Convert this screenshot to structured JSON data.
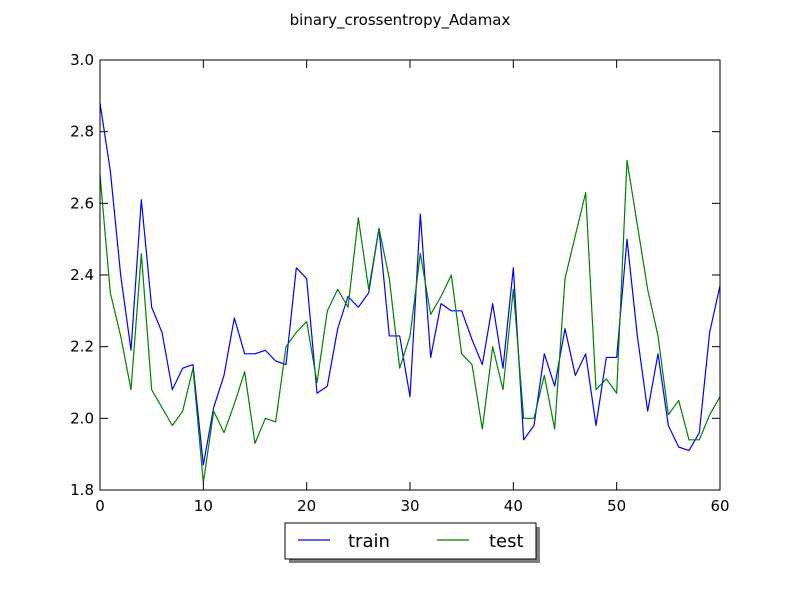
{
  "chart_data": {
    "type": "line",
    "title": "binary_crossentropy_Adamax",
    "xlabel": "",
    "ylabel": "",
    "xlim": [
      0,
      60
    ],
    "ylim": [
      1.8,
      3.0
    ],
    "xticks": [
      0,
      10,
      20,
      30,
      40,
      50,
      60
    ],
    "yticks": [
      1.8,
      2.0,
      2.2,
      2.4,
      2.6,
      2.8,
      3.0
    ],
    "xtick_labels": [
      "0",
      "10",
      "20",
      "30",
      "40",
      "50",
      "60"
    ],
    "ytick_labels": [
      "1.8",
      "2.0",
      "2.2",
      "2.4",
      "2.6",
      "2.8",
      "3.0"
    ],
    "grid": false,
    "legend_position": "bottom-center-outside",
    "x": [
      0,
      1,
      2,
      3,
      4,
      5,
      6,
      7,
      8,
      9,
      10,
      11,
      12,
      13,
      14,
      15,
      16,
      17,
      18,
      19,
      20,
      21,
      22,
      23,
      24,
      25,
      26,
      27,
      28,
      29,
      30,
      31,
      32,
      33,
      34,
      35,
      36,
      37,
      38,
      39,
      40,
      41,
      42,
      43,
      44,
      45,
      46,
      47,
      48,
      49,
      50,
      51,
      52,
      53,
      54,
      55,
      56,
      57,
      58,
      59,
      60
    ],
    "series": [
      {
        "name": "train",
        "color": "#0000ff",
        "values": [
          2.88,
          2.69,
          2.4,
          2.19,
          2.61,
          2.31,
          2.24,
          2.08,
          2.14,
          2.15,
          1.87,
          2.03,
          2.12,
          2.28,
          2.18,
          2.18,
          2.19,
          2.16,
          2.15,
          2.42,
          2.39,
          2.07,
          2.09,
          2.25,
          2.34,
          2.31,
          2.35,
          2.53,
          2.23,
          2.23,
          2.06,
          2.57,
          2.17,
          2.32,
          2.3,
          2.3,
          2.22,
          2.15,
          2.32,
          2.14,
          2.42,
          1.94,
          1.98,
          2.18,
          2.09,
          2.25,
          2.12,
          2.18,
          1.98,
          2.17,
          2.17,
          2.5,
          2.23,
          2.02,
          2.18,
          1.98,
          1.92,
          1.91,
          1.96,
          2.24,
          2.37
        ]
      },
      {
        "name": "test",
        "color": "#008000",
        "values": [
          2.68,
          2.35,
          2.23,
          2.08,
          2.46,
          2.08,
          2.03,
          1.98,
          2.02,
          2.14,
          1.82,
          2.02,
          1.96,
          2.04,
          2.13,
          1.93,
          2.0,
          1.99,
          2.2,
          2.24,
          2.27,
          2.1,
          2.3,
          2.36,
          2.31,
          2.56,
          2.36,
          2.53,
          2.39,
          2.14,
          2.23,
          2.46,
          2.29,
          2.34,
          2.4,
          2.18,
          2.15,
          1.97,
          2.2,
          2.08,
          2.36,
          2.0,
          2.0,
          2.12,
          1.97,
          2.39,
          2.51,
          2.63,
          2.08,
          2.11,
          2.07,
          2.72,
          2.54,
          2.36,
          2.23,
          2.01,
          2.05,
          1.94,
          1.94,
          2.01,
          2.06
        ]
      }
    ]
  }
}
